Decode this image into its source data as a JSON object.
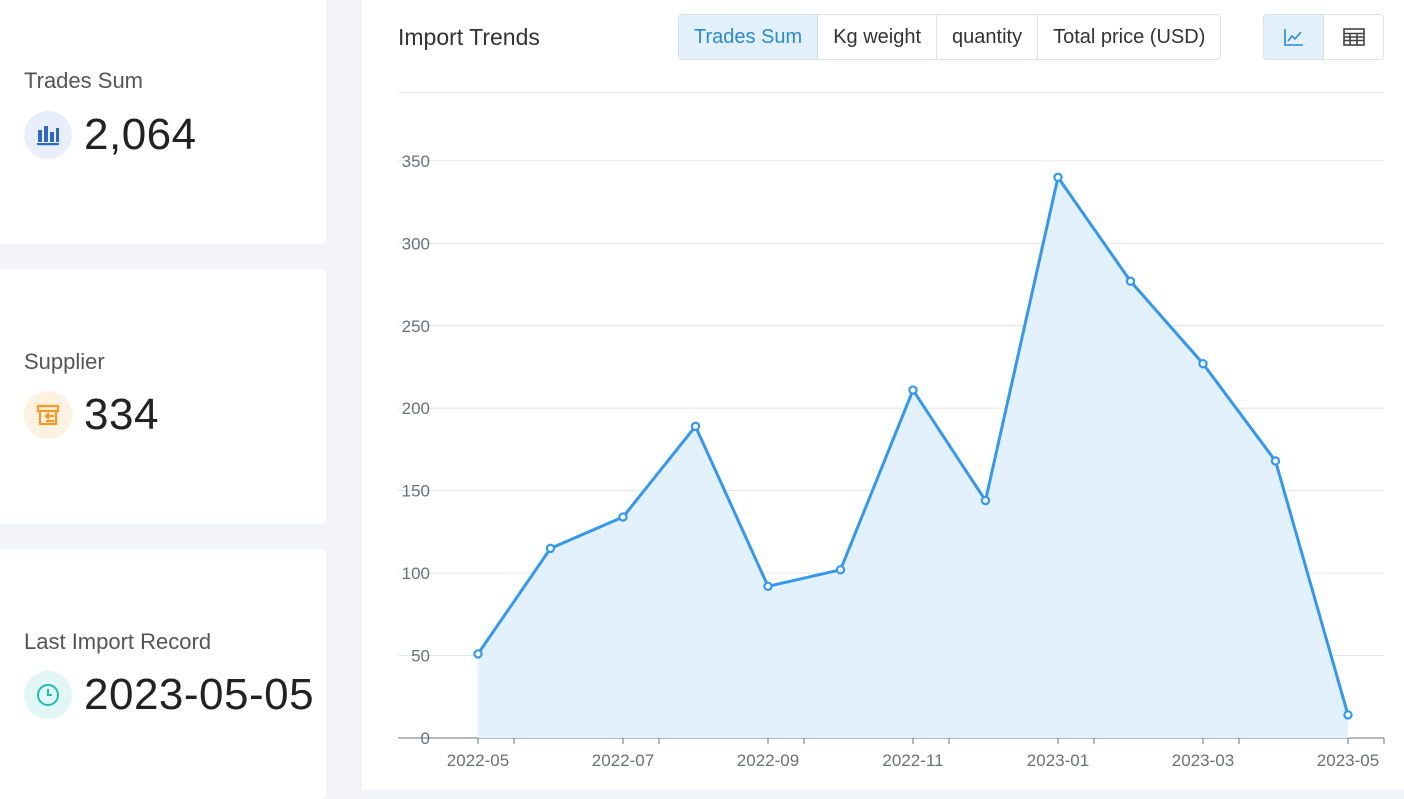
{
  "stats": {
    "trades": {
      "label": "Trades Sum",
      "value": "2,064",
      "icon": "bar-chart-icon"
    },
    "supplier": {
      "label": "Supplier",
      "value": "334",
      "icon": "supplier-store-icon"
    },
    "last_record": {
      "label": "Last Import Record",
      "value": "2023-05-05",
      "icon": "clock-icon"
    }
  },
  "panel": {
    "title": "Import Trends",
    "metric_tabs": [
      "Trades Sum",
      "Kg weight",
      "quantity",
      "Total price (USD)"
    ],
    "active_metric": "Trades Sum",
    "view_toggle": {
      "chart_icon": "line-chart-icon",
      "table_icon": "table-icon",
      "active": "line-chart"
    }
  },
  "colors": {
    "accent": "#3398f0",
    "area_fill": "#e3f1fd",
    "active_tab_bg": "#e3f1fd",
    "active_tab_text": "#2a8ad8",
    "trades_icon": "#2f67c8",
    "supplier_icon": "#f59a23",
    "clock_icon": "#1bbfb3"
  },
  "chart_data": {
    "type": "area",
    "x": [
      "2022-05",
      "2022-06",
      "2022-07",
      "2022-08",
      "2022-09",
      "2022-10",
      "2022-11",
      "2022-12",
      "2023-01",
      "2023-02",
      "2023-03",
      "2023-04",
      "2023-05"
    ],
    "x_tick_labels": [
      "2022-05",
      "2022-07",
      "2022-09",
      "2022-11",
      "2023-01",
      "2023-03",
      "2023-05"
    ],
    "series": [
      {
        "values": [
          51,
          115,
          134,
          189,
          92,
          102,
          211,
          144,
          340,
          277,
          227,
          168,
          14
        ]
      }
    ],
    "y_ticks": [
      0,
      50,
      100,
      150,
      200,
      250,
      300,
      350
    ],
    "ylim": [
      0,
      350
    ],
    "grid": true,
    "title": "",
    "xlabel": "",
    "ylabel": ""
  }
}
